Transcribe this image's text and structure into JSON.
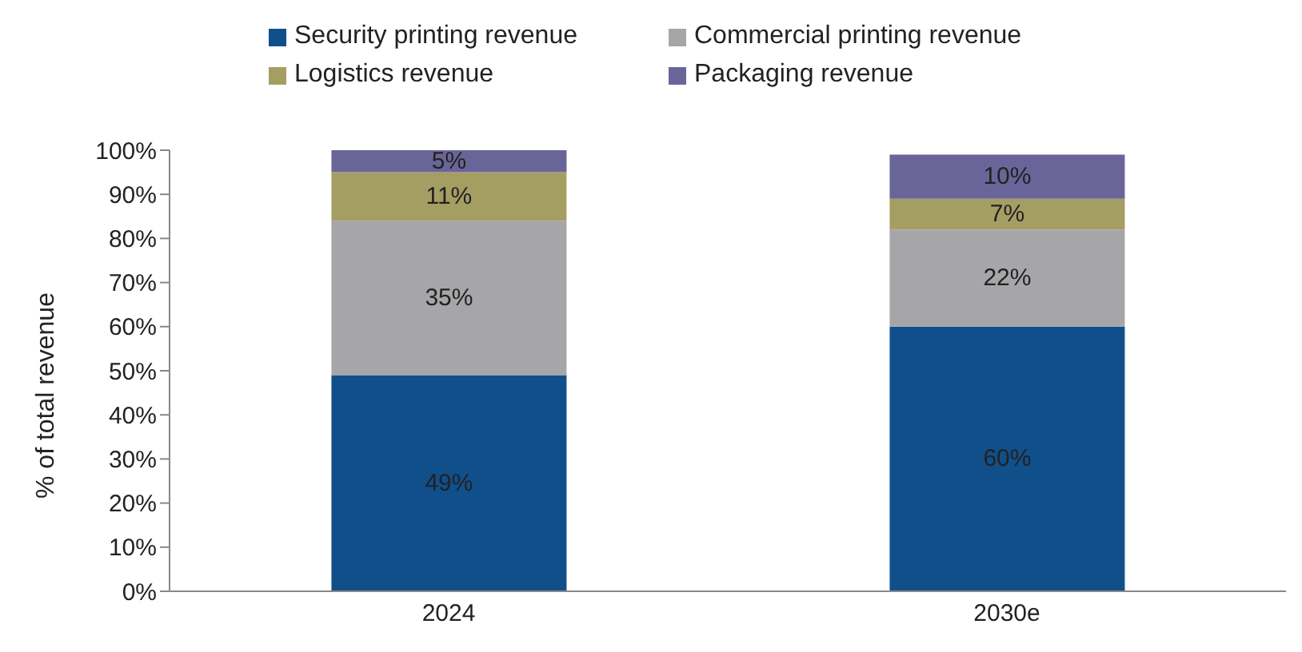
{
  "chart_data": {
    "type": "bar",
    "stacked": true,
    "ylabel": "% of total revenue",
    "categories": [
      "2024",
      "2030e"
    ],
    "series": [
      {
        "name": "Security printing revenue",
        "color": "#114f8b",
        "values": [
          49,
          60
        ],
        "value_labels": [
          "49%",
          "60%"
        ]
      },
      {
        "name": "Commercial printing revenue",
        "color": "#a6a6a9",
        "values": [
          35,
          22
        ],
        "value_labels": [
          "35%",
          "22%"
        ]
      },
      {
        "name": "Logistics revenue",
        "color": "#a59e63",
        "values": [
          11,
          7
        ],
        "value_labels": [
          "11%",
          "7%"
        ]
      },
      {
        "name": "Packaging revenue",
        "color": "#6a6599",
        "values": [
          5,
          10
        ],
        "value_labels": [
          "5%",
          "10%"
        ]
      }
    ],
    "ylim": [
      0,
      100
    ],
    "yticks": [
      {
        "value": 0,
        "label": "0%"
      },
      {
        "value": 10,
        "label": "10%"
      },
      {
        "value": 20,
        "label": "20%"
      },
      {
        "value": 30,
        "label": "30%"
      },
      {
        "value": 40,
        "label": "40%"
      },
      {
        "value": 50,
        "label": "50%"
      },
      {
        "value": 60,
        "label": "60%"
      },
      {
        "value": 70,
        "label": "70%"
      },
      {
        "value": 80,
        "label": "80%"
      },
      {
        "value": 90,
        "label": "90%"
      },
      {
        "value": 100,
        "label": "100%"
      }
    ],
    "grid": false,
    "legend": "top"
  }
}
